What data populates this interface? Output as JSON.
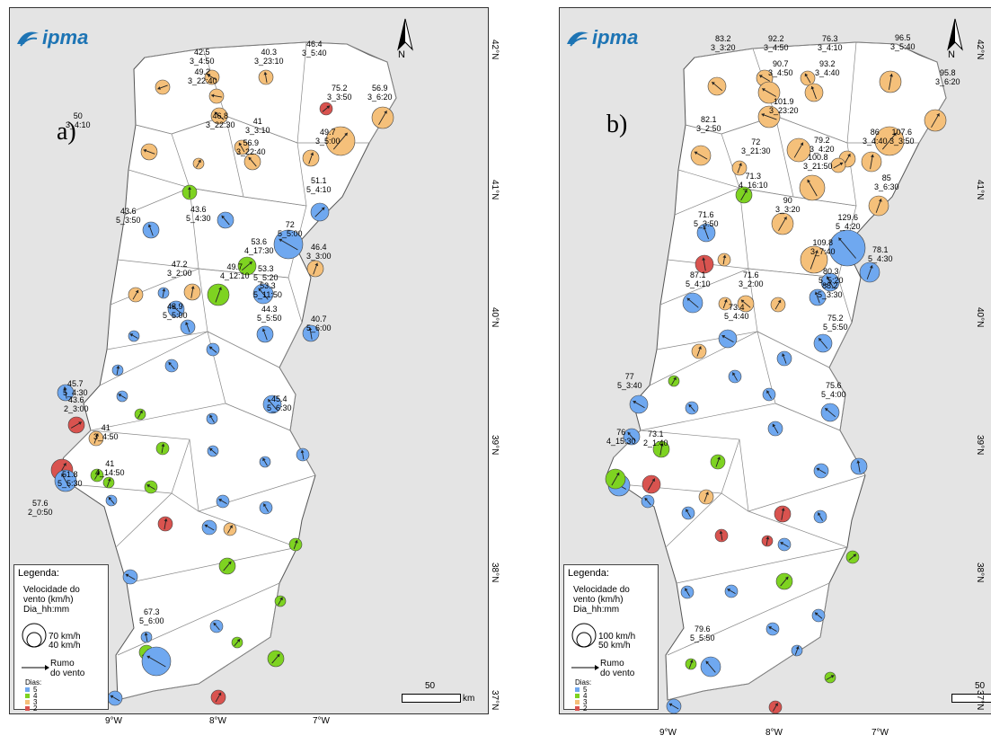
{
  "panel_a": {
    "label": "a)",
    "logo": "ipma",
    "north": "N",
    "legend": {
      "title": "Legenda:",
      "speed_label": [
        "Velocidade do",
        "vento (km/h)",
        "Dia_hh:mm"
      ],
      "circle_large": "70 km/h",
      "circle_small": "40 km/h",
      "direction_label": [
        "Rumo",
        "do vento"
      ],
      "days_title": "Dias:",
      "days": [
        "5",
        "4",
        "3",
        "2"
      ]
    },
    "scale": {
      "value": "50",
      "unit": "km"
    },
    "lat_labels": [
      "42°N",
      "41°N",
      "40°N",
      "39°N",
      "38°N",
      "37°N"
    ],
    "lon_labels": [
      "9°W",
      "8°W",
      "7°W"
    ],
    "annotations": [
      [
        "46.4",
        "3_5:40"
      ],
      [
        "42.5",
        "3_4:50"
      ],
      [
        "40.3",
        "3_23:10"
      ],
      [
        "49.2",
        "3_22:40"
      ],
      [
        "56.9",
        "3_6:20"
      ],
      [
        "75.2",
        "3_3:50"
      ],
      [
        "50",
        "3_4:10"
      ],
      [
        "46.8",
        "3_22:30"
      ],
      [
        "41",
        "3_3:10"
      ],
      [
        "49.7",
        "3_5:00"
      ],
      [
        "56.9",
        "3_22:40"
      ],
      [
        "51.1",
        "5_4:10"
      ],
      [
        "43.6",
        "5_4:30"
      ],
      [
        "43.6",
        "5_3:50"
      ],
      [
        "72",
        "5_5:00"
      ],
      [
        "53.6",
        "4_17:30"
      ],
      [
        "46.4",
        "3_3:00"
      ],
      [
        "47.2",
        "3_2:00"
      ],
      [
        "49.7",
        "4_12:10"
      ],
      [
        "53.3",
        "5_5:20"
      ],
      [
        "53.3",
        "5_11:50"
      ],
      [
        "43.9",
        "5_5:00"
      ],
      [
        "44.3",
        "5_5:50"
      ],
      [
        "40.7",
        "5_6:00"
      ],
      [
        "45.7",
        "5_4:30"
      ],
      [
        "45.4",
        "5_6:30"
      ],
      [
        "43.6",
        "2_3:00"
      ],
      [
        "41",
        "3_4:50"
      ],
      [
        "41",
        "4_14:50"
      ],
      [
        "51.8",
        "5_5:30"
      ],
      [
        "57.6",
        "2_0:50"
      ],
      [
        "67.3",
        "5_6:00"
      ]
    ]
  },
  "panel_b": {
    "label": "b)",
    "logo": "ipma",
    "north": "N",
    "legend": {
      "title": "Legenda:",
      "speed_label": [
        "Velocidade do",
        "vento (km/h)",
        "Dia_hh:mm"
      ],
      "circle_large": "100 km/h",
      "circle_small": "50 km/h",
      "direction_label": [
        "Rumo",
        "do vento"
      ],
      "days_title": "Dias:",
      "days": [
        "5",
        "4",
        "3",
        "2"
      ]
    },
    "scale": {
      "value": "50",
      "unit": "km"
    },
    "lat_labels": [
      "42°N",
      "41°N",
      "40°N",
      "39°N",
      "38°N",
      "37°N"
    ],
    "lon_labels": [
      "9°W",
      "8°W",
      "7°W"
    ],
    "annotations": [
      [
        "83.2",
        "3_3:20"
      ],
      [
        "92.2",
        "3_4:50"
      ],
      [
        "76.3",
        "3_4:10"
      ],
      [
        "96.5",
        "3_5:40"
      ],
      [
        "90.7",
        "3_4:50"
      ],
      [
        "93.2",
        "3_4:40"
      ],
      [
        "95.8",
        "3_6:20"
      ],
      [
        "101.9",
        "3_23:20"
      ],
      [
        "82.1",
        "3_2:50"
      ],
      [
        "72",
        "3_21:30"
      ],
      [
        "79.2",
        "3_4:20"
      ],
      [
        "107.6",
        "3_3:50"
      ],
      [
        "86",
        "3_4:40"
      ],
      [
        "100.8",
        "3_21:50"
      ],
      [
        "71.3",
        "4_16:10"
      ],
      [
        "85",
        "3_6:30"
      ],
      [
        "90",
        "3_3:20"
      ],
      [
        "71.6",
        "5_3:50"
      ],
      [
        "129.6",
        "5_4:20"
      ],
      [
        "109.8",
        "3_7:40"
      ],
      [
        "78.1",
        "5_4:30"
      ],
      [
        "87.1",
        "5_4:10"
      ],
      [
        "71.6",
        "3_2:00"
      ],
      [
        "80.3",
        "5_5:20"
      ],
      [
        "88.2",
        "5_3:30"
      ],
      [
        "73.4",
        "5_4:40"
      ],
      [
        "75.2",
        "5_5:50"
      ],
      [
        "77",
        "5_3:40"
      ],
      [
        "75.6",
        "5_4:00"
      ],
      [
        "76",
        "4_15:30"
      ],
      [
        "73.1",
        "2_1:40"
      ],
      [
        "79.6",
        "5_5:50"
      ]
    ]
  },
  "colors": {
    "day5": "#6fa8f0",
    "day4": "#7ed321",
    "day3": "#f5c07a",
    "day2": "#d9534f",
    "land": "#ffffff",
    "sea": "#e4e4e4",
    "logo": "#1d74b4"
  }
}
